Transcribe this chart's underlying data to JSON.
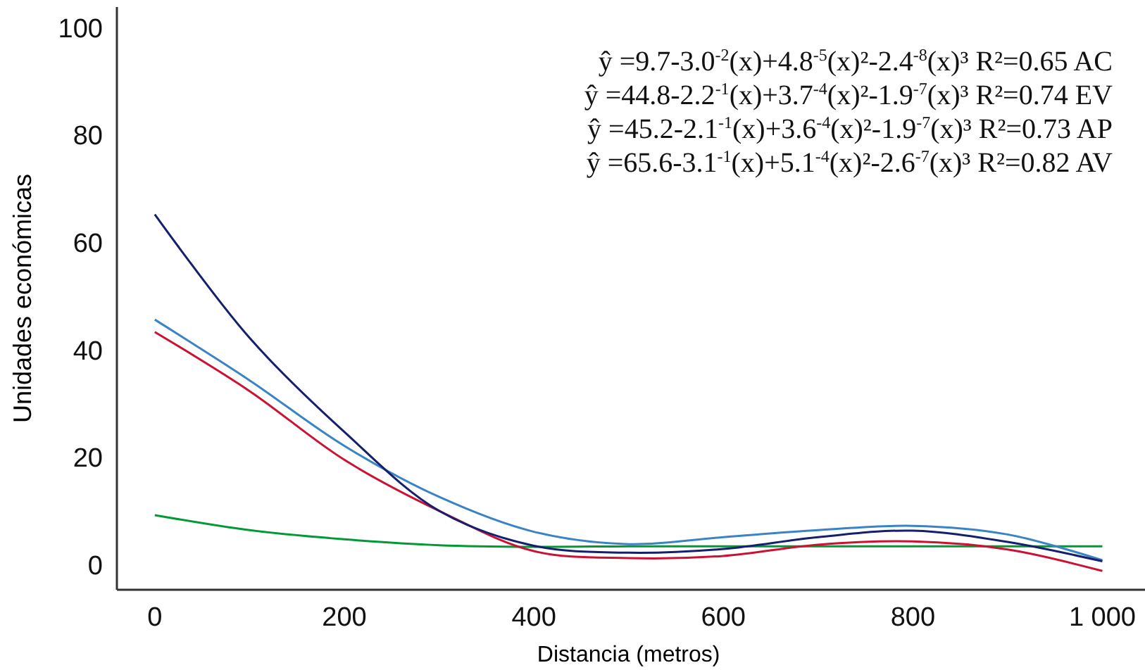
{
  "chart_data": {
    "type": "line",
    "xlabel": "Distancia (metros)",
    "ylabel": "Unidades económicas",
    "x": [
      0,
      100,
      200,
      300,
      400,
      500,
      600,
      700,
      800,
      900,
      1000
    ],
    "series": [
      {
        "color": "#009933",
        "values": [
          9.4,
          6.6,
          4.9,
          3.8,
          3.5,
          3.6,
          3.6,
          3.6,
          3.6,
          3.6,
          3.6
        ]
      },
      {
        "color": "#3a84c6",
        "values": [
          45.8,
          34.5,
          22.3,
          12.8,
          6.3,
          4.0,
          5.3,
          6.6,
          7.4,
          5.8,
          1.0
        ]
      },
      {
        "color": "#cc1133",
        "values": [
          43.5,
          32.5,
          19.7,
          10.2,
          2.7,
          1.4,
          1.8,
          3.9,
          4.5,
          3.0,
          -1.0
        ]
      },
      {
        "color": "#14206e",
        "values": [
          65.4,
          42.4,
          24.9,
          10.2,
          3.7,
          2.4,
          3.1,
          5.3,
          6.5,
          4.4,
          0.8
        ]
      }
    ],
    "xlim": [
      -40,
      1045
    ],
    "ylim": [
      -4.5,
      104
    ],
    "xticks": [
      0,
      200,
      400,
      600,
      800,
      {
        "value": 1000,
        "label": "1 000"
      }
    ],
    "yticks": [
      0,
      20,
      40,
      60,
      80,
      100
    ],
    "marker": "none",
    "line_style": "solid",
    "annotations": [
      "ŷ =9.7-3.0$^{-2}$(x)+4.8$^{-5}$(x)²-2.4$^{-8}$(x)³ R²=0.65  AC",
      "ŷ =44.8-2.2$^{-1}$(x)+3.7$^{-4}$(x)²-1.9$^{-7}$(x)³ R²=0.74  EV",
      "ŷ =45.2-2.1$^{-1}$(x)+3.6$^{-4}$(x)²-1.9$^{-7}$(x)³ R²=0.73  AP",
      "ŷ =65.6-3.1$^{-1}$(x)+5.1$^{-4}$(x)²-2.6$^{-7}$(x)³ R²=0.82  AV"
    ]
  }
}
